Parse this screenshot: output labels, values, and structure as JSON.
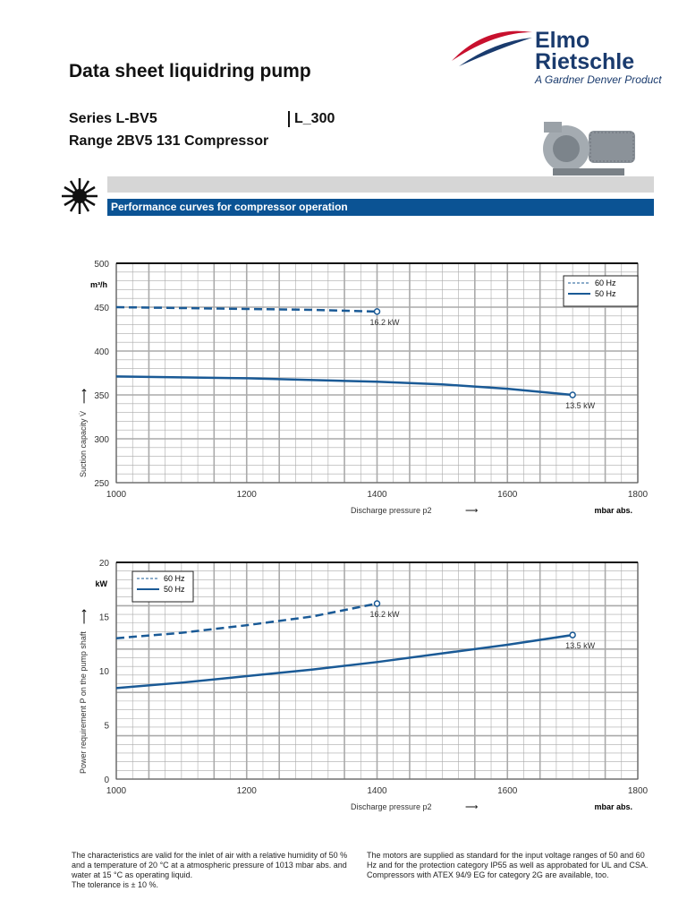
{
  "header": {
    "title": "Data sheet liquidring pump",
    "series": "Series L-BV5",
    "range": "Range 2BV5 131 Compressor",
    "code": "L_300",
    "logo": {
      "line1": "Elmo",
      "line2": "Rietschle",
      "tagline": "A Gardner Denver Product"
    },
    "section": "Performance curves for compressor operation"
  },
  "colors": {
    "accent": "#0b5394",
    "curve": "#1a5a96"
  },
  "chart_data": [
    {
      "type": "line",
      "xlabel": "Discharge pressure p2",
      "xunit": "mbar abs.",
      "ylabel": "Suction capacity V̇",
      "yunit": "m³/h",
      "xlim": [
        1000,
        1800
      ],
      "ylim": [
        250,
        500
      ],
      "xticks": [
        1000,
        1200,
        1400,
        1600,
        1800
      ],
      "yticks": [
        250,
        300,
        350,
        400,
        450,
        500
      ],
      "grid": true,
      "legend": "top-right",
      "series": [
        {
          "name": "60 Hz",
          "style": "dashed",
          "x": [
            1000,
            1100,
            1200,
            1300,
            1400
          ],
          "y": [
            450,
            449,
            448,
            447,
            445
          ],
          "end_label": "16.2 kW"
        },
        {
          "name": "50 Hz",
          "style": "solid",
          "x": [
            1000,
            1200,
            1400,
            1500,
            1600,
            1700
          ],
          "y": [
            371,
            369,
            365,
            362,
            357,
            350
          ],
          "end_label": "13.5 kW"
        }
      ]
    },
    {
      "type": "line",
      "xlabel": "Discharge pressure p2",
      "xunit": "mbar abs.",
      "ylabel": "Power requirement P on the pump shaft",
      "yunit": "kW",
      "xlim": [
        1000,
        1800
      ],
      "ylim": [
        0,
        20
      ],
      "xticks": [
        1000,
        1200,
        1400,
        1600,
        1800
      ],
      "yticks": [
        0,
        5,
        10,
        15,
        20
      ],
      "grid": true,
      "legend": "top-left",
      "series": [
        {
          "name": "60 Hz",
          "style": "dashed",
          "x": [
            1000,
            1100,
            1200,
            1300,
            1400
          ],
          "y": [
            13.0,
            13.5,
            14.2,
            15.0,
            16.2
          ],
          "end_label": "16.2 kW"
        },
        {
          "name": "50 Hz",
          "style": "solid",
          "x": [
            1000,
            1100,
            1200,
            1300,
            1400,
            1500,
            1600,
            1700
          ],
          "y": [
            8.4,
            8.9,
            9.5,
            10.1,
            10.8,
            11.6,
            12.4,
            13.3
          ],
          "end_label": "13.5 kW"
        }
      ]
    }
  ],
  "notes": {
    "left": [
      "The characteristics are valid for the inlet of air with a relative humidity of 50 % and a temperature of 20 °C at a atmospheric pressure of 1013 mbar abs. and water at 15 °C as operating liquid.",
      "The tolerance is ± 10 %."
    ],
    "right": "The motors are supplied as standard for the input voltage ranges of 50 and 60 Hz and for the protection category IP55 as well as approbated for UL and CSA. Compressors with ATEX 94/9 EG for category 2G are available, too."
  }
}
